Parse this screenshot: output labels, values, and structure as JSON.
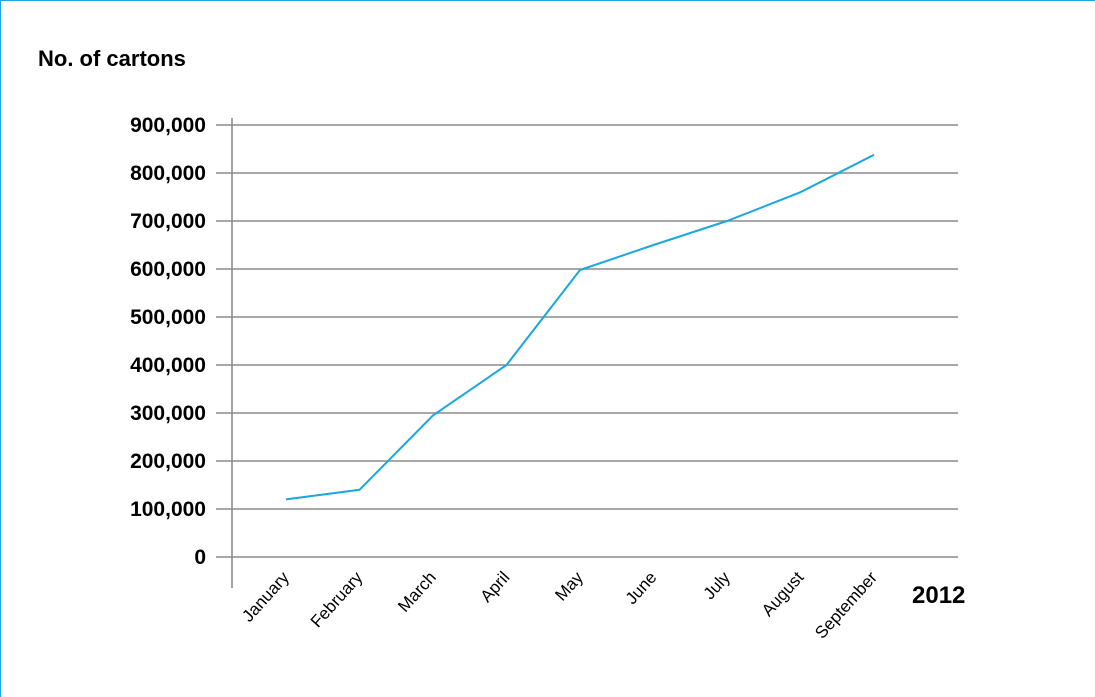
{
  "chart_data": {
    "type": "line",
    "ylabel": "No. of cartons",
    "xlabel": "2012",
    "categories": [
      "January",
      "February",
      "March",
      "April",
      "May",
      "June",
      "July",
      "August",
      "September"
    ],
    "values": [
      120000,
      140000,
      295000,
      400000,
      598000,
      650000,
      700000,
      760000,
      838000
    ],
    "yticks": [
      "0",
      "100,000",
      "200,000",
      "300,000",
      "400,000",
      "500,000",
      "600,000",
      "700,000",
      "800,000",
      "900,000"
    ],
    "ylim": [
      0,
      900000
    ],
    "grid": true,
    "line_color": "#1ba7e1",
    "grid_color": "#8c8c8c"
  }
}
